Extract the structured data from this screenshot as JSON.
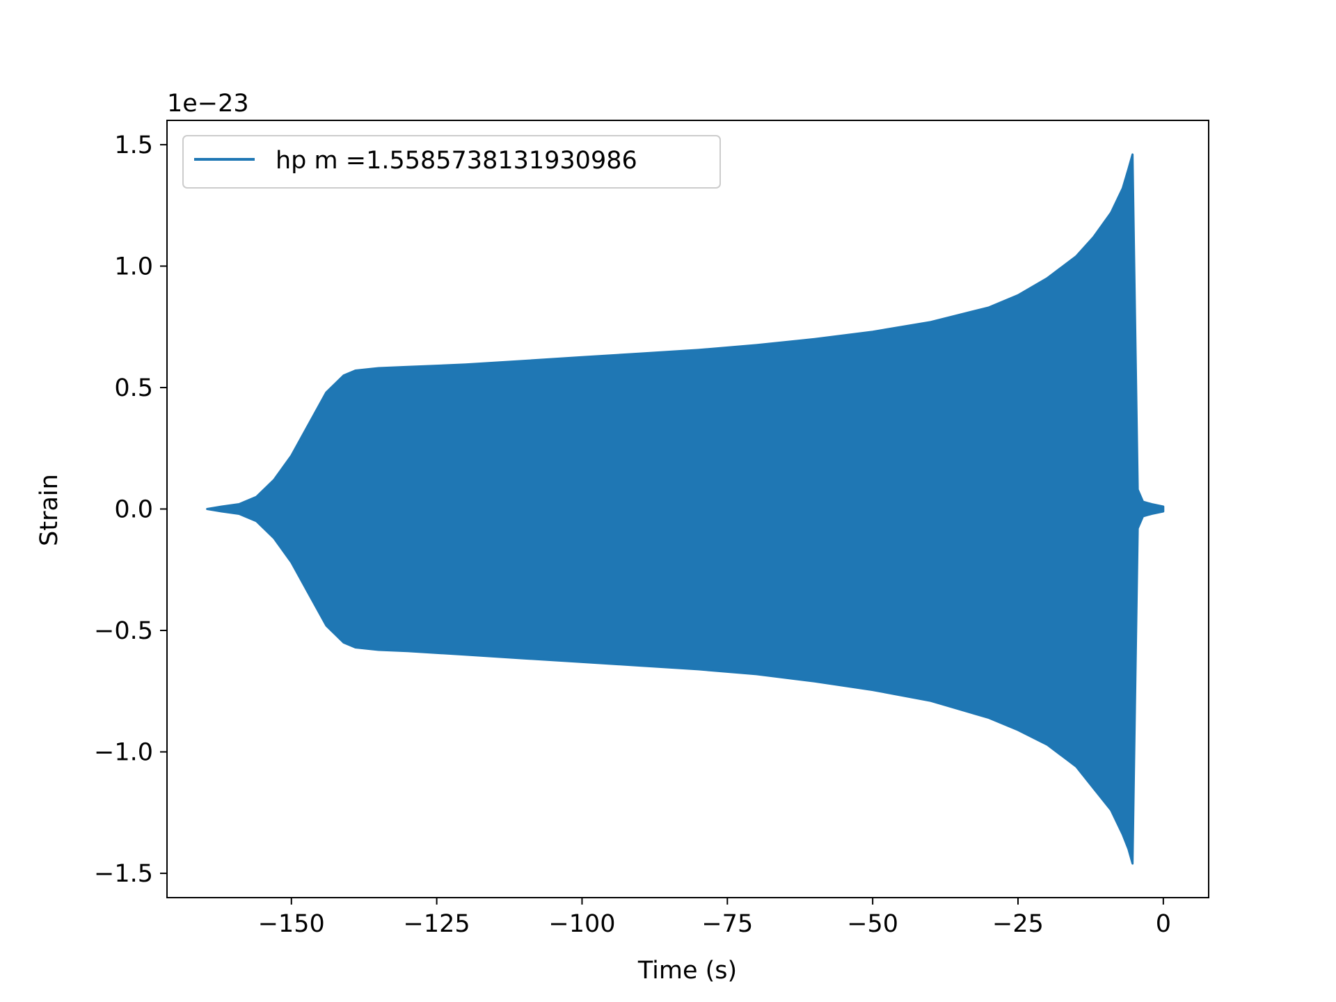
{
  "chart_data": {
    "type": "line",
    "title": "",
    "xlabel": "Time (s)",
    "ylabel": "Strain",
    "y_offset_label": "1e−23",
    "y_scale_factor": 1e-23,
    "xlim": [
      -171.4,
      7.8
    ],
    "ylim": [
      -1.6,
      1.6
    ],
    "xticks": [
      -150,
      -125,
      -100,
      -75,
      -50,
      -25,
      0
    ],
    "xtick_labels": [
      "−150",
      "−125",
      "−100",
      "−75",
      "−50",
      "−25",
      "0"
    ],
    "yticks": [
      -1.5,
      -1.0,
      -0.5,
      0.0,
      0.5,
      1.0,
      1.5
    ],
    "ytick_labels": [
      "−1.5",
      "−1.0",
      "−0.5",
      "0.0",
      "0.5",
      "1.0",
      "1.5"
    ],
    "grid": false,
    "legend_position": "upper-left",
    "series": [
      {
        "name": "hp m =1.5585738131930986",
        "color": "#1f77b4",
        "description": "oscillating strain, rendered as its upper/lower envelope (units of 1e-23)",
        "upper_envelope": [
          [
            -164.5,
            0.0
          ],
          [
            -162,
            0.01
          ],
          [
            -159,
            0.02
          ],
          [
            -156,
            0.05
          ],
          [
            -153,
            0.12
          ],
          [
            -150,
            0.22
          ],
          [
            -147,
            0.35
          ],
          [
            -144,
            0.48
          ],
          [
            -141,
            0.55
          ],
          [
            -139,
            0.57
          ],
          [
            -135,
            0.58
          ],
          [
            -130,
            0.585
          ],
          [
            -120,
            0.595
          ],
          [
            -110,
            0.61
          ],
          [
            -100,
            0.625
          ],
          [
            -90,
            0.64
          ],
          [
            -80,
            0.655
          ],
          [
            -70,
            0.675
          ],
          [
            -60,
            0.7
          ],
          [
            -50,
            0.73
          ],
          [
            -40,
            0.77
          ],
          [
            -30,
            0.83
          ],
          [
            -25,
            0.88
          ],
          [
            -20,
            0.95
          ],
          [
            -15,
            1.04
          ],
          [
            -12,
            1.12
          ],
          [
            -9,
            1.22
          ],
          [
            -7,
            1.32
          ],
          [
            -6,
            1.4
          ],
          [
            -5.3,
            1.46
          ],
          [
            -4.8,
            0.7
          ],
          [
            -4.4,
            0.08
          ],
          [
            -3.5,
            0.03
          ],
          [
            -2,
            0.02
          ],
          [
            0,
            0.01
          ]
        ],
        "lower_envelope": [
          [
            -164.5,
            0.0
          ],
          [
            -162,
            -0.01
          ],
          [
            -159,
            -0.02
          ],
          [
            -156,
            -0.05
          ],
          [
            -153,
            -0.12
          ],
          [
            -150,
            -0.22
          ],
          [
            -147,
            -0.35
          ],
          [
            -144,
            -0.48
          ],
          [
            -141,
            -0.55
          ],
          [
            -139,
            -0.57
          ],
          [
            -135,
            -0.58
          ],
          [
            -130,
            -0.585
          ],
          [
            -120,
            -0.6
          ],
          [
            -110,
            -0.615
          ],
          [
            -100,
            -0.63
          ],
          [
            -90,
            -0.645
          ],
          [
            -80,
            -0.66
          ],
          [
            -70,
            -0.68
          ],
          [
            -60,
            -0.71
          ],
          [
            -50,
            -0.745
          ],
          [
            -40,
            -0.79
          ],
          [
            -30,
            -0.86
          ],
          [
            -25,
            -0.91
          ],
          [
            -20,
            -0.97
          ],
          [
            -15,
            -1.06
          ],
          [
            -12,
            -1.15
          ],
          [
            -9,
            -1.24
          ],
          [
            -7,
            -1.34
          ],
          [
            -6,
            -1.4
          ],
          [
            -5.3,
            -1.46
          ],
          [
            -4.8,
            -0.7
          ],
          [
            -4.4,
            -0.08
          ],
          [
            -3.5,
            -0.03
          ],
          [
            -2,
            -0.02
          ],
          [
            0,
            -0.01
          ]
        ]
      }
    ]
  }
}
